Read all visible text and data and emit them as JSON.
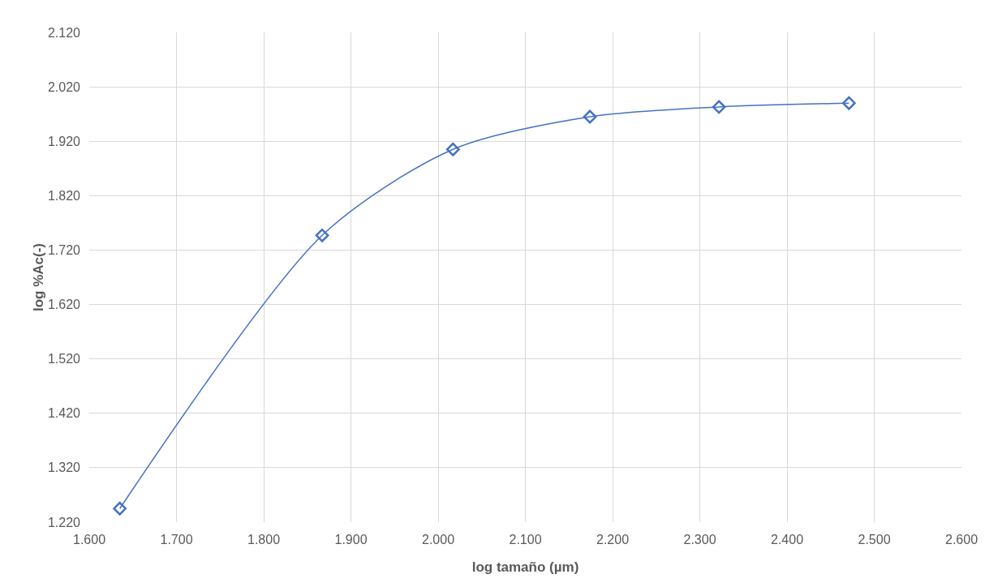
{
  "chart_data": {
    "type": "line",
    "xlabel": "log tamaño (µm)",
    "ylabel": "log %Ac(-)",
    "x": [
      1.635,
      1.867,
      2.017,
      2.174,
      2.322,
      2.471
    ],
    "series": [
      {
        "color": "#4472c4",
        "values": [
          1.245,
          1.747,
          1.905,
          1.965,
          1.983,
          1.99
        ]
      }
    ],
    "xlim": [
      1.6,
      2.6
    ],
    "xticks": [
      {
        "value": 1.6,
        "label": "1.600"
      },
      {
        "value": 1.7,
        "label": "1.700"
      },
      {
        "value": 1.8,
        "label": "1.800"
      },
      {
        "value": 1.9,
        "label": "1.900"
      },
      {
        "value": 2.0,
        "label": "2.000"
      },
      {
        "value": 2.1,
        "label": "2.100"
      },
      {
        "value": 2.2,
        "label": "2.200"
      },
      {
        "value": 2.3,
        "label": "2.300"
      },
      {
        "value": 2.4,
        "label": "2.400"
      },
      {
        "value": 2.5,
        "label": "2.500"
      },
      {
        "value": 2.6,
        "label": "2.600"
      }
    ],
    "ylim": [
      1.22,
      2.12
    ],
    "yticks": [
      {
        "value": 1.22,
        "label": "1.220"
      },
      {
        "value": 1.32,
        "label": "1.320"
      },
      {
        "value": 1.42,
        "label": "1.420"
      },
      {
        "value": 1.52,
        "label": "1.520"
      },
      {
        "value": 1.62,
        "label": "1.620"
      },
      {
        "value": 1.72,
        "label": "1.720"
      },
      {
        "value": 1.82,
        "label": "1.820"
      },
      {
        "value": 1.92,
        "label": "1.920"
      },
      {
        "value": 2.02,
        "label": "2.020"
      },
      {
        "value": 2.12,
        "label": "2.120"
      }
    ],
    "grid": true,
    "marker": "diamond",
    "line_style": "solid"
  }
}
